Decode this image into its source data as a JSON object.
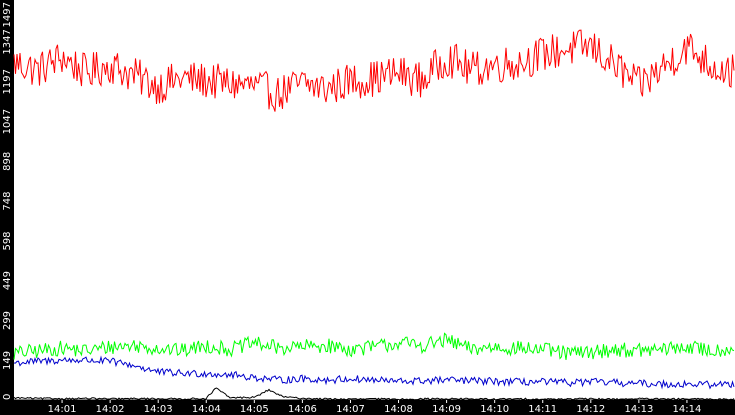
{
  "chart_data": {
    "type": "line",
    "title": "",
    "xlabel": "",
    "ylabel": "",
    "ylim": [
      0,
      1497
    ],
    "xlim": [
      0,
      15
    ],
    "grid": false,
    "legend": "none",
    "y_ticks": [
      {
        "value": 0,
        "label": "0"
      },
      {
        "value": 149,
        "label": "149"
      },
      {
        "value": 299,
        "label": "299"
      },
      {
        "value": 449,
        "label": "449"
      },
      {
        "value": 598,
        "label": "598"
      },
      {
        "value": 748,
        "label": "748"
      },
      {
        "value": 898,
        "label": "898"
      },
      {
        "value": 1047,
        "label": "1047"
      },
      {
        "value": 1197,
        "label": "1197"
      },
      {
        "value": 1347,
        "label": "1347"
      },
      {
        "value": 1497,
        "label": "1497"
      }
    ],
    "x_ticks": [
      {
        "value": 1,
        "label": "14:01"
      },
      {
        "value": 2,
        "label": "14:02"
      },
      {
        "value": 3,
        "label": "14:03"
      },
      {
        "value": 4,
        "label": "14:04"
      },
      {
        "value": 5,
        "label": "14:05"
      },
      {
        "value": 6,
        "label": "14:06"
      },
      {
        "value": 7,
        "label": "14:07"
      },
      {
        "value": 8,
        "label": "14:08"
      },
      {
        "value": 9,
        "label": "14:09"
      },
      {
        "value": 10,
        "label": "14:10"
      },
      {
        "value": 11,
        "label": "14:11"
      },
      {
        "value": 12,
        "label": "14:12"
      },
      {
        "value": 13,
        "label": "14:13"
      },
      {
        "value": 14,
        "label": "14:14"
      }
    ],
    "series": [
      {
        "color": "#ff0000",
        "x": [
          0,
          0.5,
          1,
          1.5,
          2,
          2.5,
          3,
          3.5,
          4,
          4.5,
          5,
          5.5,
          6,
          6.5,
          7,
          7.5,
          8,
          8.5,
          9,
          9.5,
          10,
          10.5,
          11,
          11.5,
          12,
          12.5,
          13,
          13.5,
          14,
          14.5,
          15
        ],
        "values": [
          1270,
          1240,
          1290,
          1230,
          1260,
          1220,
          1180,
          1210,
          1200,
          1190,
          1180,
          1150,
          1190,
          1170,
          1200,
          1210,
          1230,
          1200,
          1290,
          1240,
          1260,
          1270,
          1300,
          1320,
          1330,
          1260,
          1180,
          1250,
          1330,
          1260,
          1230
        ]
      },
      {
        "color": "#00ff00",
        "x": [
          0,
          0.5,
          1,
          1.5,
          2,
          2.5,
          3,
          3.5,
          4,
          4.5,
          5,
          5.5,
          6,
          6.5,
          7,
          7.5,
          8,
          8.5,
          9,
          9.5,
          10,
          10.5,
          11,
          11.5,
          12,
          12.5,
          13,
          13.5,
          14,
          14.5,
          15
        ],
        "values": [
          175,
          185,
          195,
          185,
          200,
          205,
          195,
          185,
          205,
          190,
          215,
          195,
          200,
          205,
          190,
          200,
          215,
          205,
          225,
          190,
          200,
          195,
          190,
          175,
          180,
          190,
          185,
          190,
          200,
          185,
          195
        ]
      },
      {
        "color": "#0000cc",
        "x": [
          0,
          0.5,
          1,
          1.5,
          2,
          2.5,
          3,
          3.5,
          4,
          4.5,
          5,
          5.5,
          6,
          6.5,
          7,
          7.5,
          8,
          8.5,
          9,
          9.5,
          10,
          10.5,
          11,
          11.5,
          12,
          12.5,
          13,
          13.5,
          14,
          14.5,
          15
        ],
        "values": [
          140,
          145,
          150,
          150,
          145,
          130,
          105,
          100,
          100,
          95,
          85,
          75,
          80,
          75,
          80,
          75,
          70,
          72,
          75,
          72,
          70,
          68,
          68,
          65,
          68,
          65,
          62,
          60,
          60,
          58,
          60
        ]
      },
      {
        "color": "#000000",
        "x": [
          0,
          0.5,
          1,
          1.5,
          2,
          2.5,
          3,
          3.5,
          4,
          4.2,
          4.5,
          5,
          5.3,
          5.6,
          6,
          6.5,
          7,
          7.5,
          8,
          8.5,
          9,
          9.5,
          10,
          10.5,
          11,
          11.5,
          12,
          12.5,
          13,
          13.5,
          14,
          14.5,
          15
        ],
        "values": [
          8,
          6,
          5,
          6,
          4,
          5,
          5,
          4,
          6,
          45,
          8,
          10,
          38,
          12,
          6,
          4,
          3,
          4,
          3,
          4,
          5,
          4,
          3,
          4,
          3,
          4,
          4,
          3,
          5,
          3,
          4,
          3,
          3
        ]
      }
    ]
  }
}
